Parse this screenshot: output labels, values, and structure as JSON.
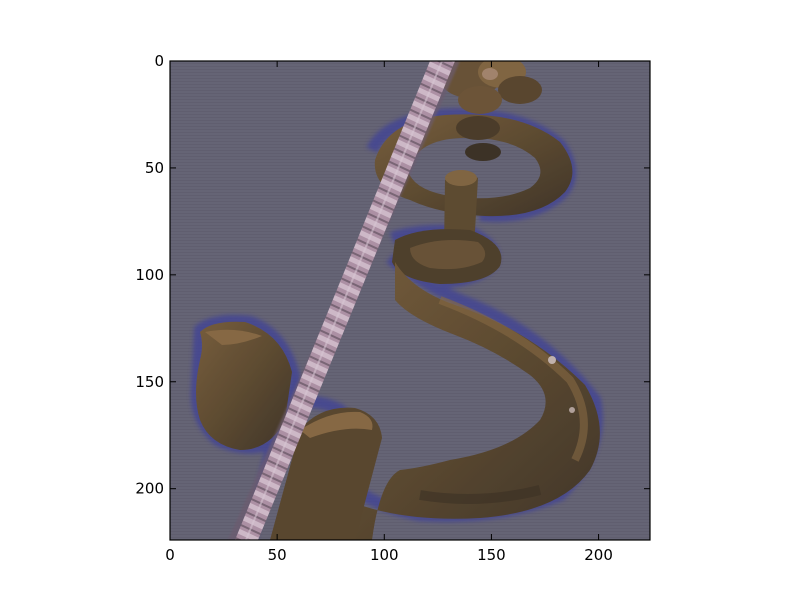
{
  "figure": {
    "x_ticks": [
      "0",
      "50",
      "100",
      "150",
      "200"
    ],
    "y_ticks": [
      "0",
      "50",
      "100",
      "150",
      "200"
    ],
    "x_tick_values": [
      0,
      50,
      100,
      150,
      200
    ],
    "y_tick_values": [
      0,
      50,
      100,
      150,
      200
    ],
    "image_extent": {
      "width": 224,
      "height": 224
    },
    "image_subject": "rusty crane hook with shackle and braided rope on a blue-gray background",
    "colors": {
      "background": "#676574",
      "metal_dark": "#4a3a22",
      "metal_mid": "#6a5230",
      "metal_light": "#84663c",
      "rope": "#b89aa8",
      "halo": "#3c3f9a"
    }
  }
}
